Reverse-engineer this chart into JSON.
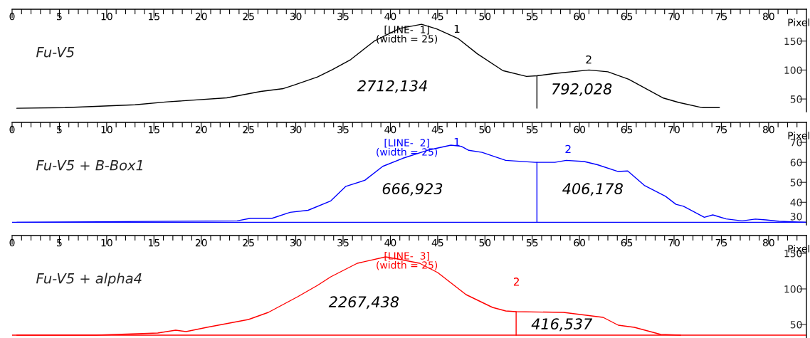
{
  "chart_data": [
    {
      "type": "line",
      "title": "Fu-V5",
      "xlabel": "Pixel",
      "xlim": [
        0,
        84
      ],
      "ylim": [
        28,
        205
      ],
      "yticks": [
        50,
        100,
        150
      ],
      "xticks": [
        0,
        {
          "value": 1,
          "label": null
        },
        {
          "value": 2,
          "label": null
        },
        {
          "value": 3,
          "label": null
        },
        {
          "value": 4,
          "label": null
        },
        5,
        {
          "value": 6,
          "label": null
        },
        {
          "value": 7,
          "label": null
        },
        {
          "value": 8,
          "label": null
        },
        {
          "value": 9,
          "label": null
        },
        10,
        {
          "value": 11,
          "label": null
        },
        {
          "value": 12,
          "label": null
        },
        {
          "value": 13,
          "label": null
        },
        {
          "value": 14,
          "label": null
        },
        15,
        {
          "value": 16,
          "label": null
        },
        {
          "value": 17,
          "label": null
        },
        {
          "value": 18,
          "label": null
        },
        {
          "value": 19,
          "label": null
        },
        20,
        {
          "value": 21,
          "label": null
        },
        {
          "value": 22,
          "label": null
        },
        {
          "value": 23,
          "label": null
        },
        {
          "value": 24,
          "label": null
        },
        25,
        {
          "value": 26,
          "label": null
        },
        {
          "value": 27,
          "label": null
        },
        {
          "value": 28,
          "label": null
        },
        {
          "value": 29,
          "label": null
        },
        30,
        {
          "value": 31,
          "label": null
        },
        {
          "value": 32,
          "label": null
        },
        {
          "value": 33,
          "label": null
        },
        {
          "value": 34,
          "label": null
        },
        35,
        {
          "value": 36,
          "label": null
        },
        {
          "value": 37,
          "label": null
        },
        {
          "value": 38,
          "label": null
        },
        {
          "value": 39,
          "label": null
        },
        40,
        {
          "value": 41,
          "label": null
        },
        {
          "value": 42,
          "label": null
        },
        {
          "value": 43,
          "label": null
        },
        {
          "value": 44,
          "label": null
        },
        45,
        {
          "value": 46,
          "label": null
        },
        {
          "value": 47,
          "label": null
        },
        {
          "value": 48,
          "label": null
        },
        {
          "value": 49,
          "label": null
        },
        50,
        {
          "value": 51,
          "label": null
        },
        {
          "value": 52,
          "label": null
        },
        {
          "value": 53,
          "label": null
        },
        {
          "value": 54,
          "label": null
        },
        55,
        {
          "value": 56,
          "label": null
        },
        {
          "value": 57,
          "label": null
        },
        {
          "value": 58,
          "label": null
        },
        {
          "value": 59,
          "label": null
        },
        60,
        {
          "value": 61,
          "label": null
        },
        {
          "value": 62,
          "label": null
        },
        {
          "value": 63,
          "label": null
        },
        {
          "value": 64,
          "label": null
        },
        65,
        {
          "value": 66,
          "label": null
        },
        {
          "value": 67,
          "label": null
        },
        {
          "value": 68,
          "label": null
        },
        {
          "value": 69,
          "label": null
        },
        70,
        {
          "value": 71,
          "label": null
        },
        {
          "value": 72,
          "label": null
        },
        {
          "value": 73,
          "label": null
        },
        {
          "value": 74,
          "label": null
        },
        75,
        {
          "value": 76,
          "label": null
        },
        {
          "value": 77,
          "label": null
        },
        {
          "value": 78,
          "label": null
        },
        {
          "value": 79,
          "label": null
        },
        80,
        {
          "value": 81,
          "label": null
        },
        {
          "value": 82,
          "label": null
        },
        {
          "value": 83,
          "label": null
        }
      ],
      "series": [
        {
          "color": "#000000",
          "x": [
            0.5,
            5.6,
            13,
            16.4,
            22.7,
            26.3,
            28.7,
            29.8,
            32.3,
            33.9,
            35.8,
            38.3,
            41,
            43.3,
            44.9,
            47.2,
            49.2,
            51.9,
            54.4,
            55.5,
            57.4,
            61,
            63,
            65.2,
            68.8,
            70.5,
            73,
            74.8
          ],
          "values": [
            34,
            35,
            40,
            45,
            52,
            63,
            68,
            74,
            88,
            101,
            118,
            150,
            172,
            179,
            171,
            154,
            128,
            99,
            89,
            90,
            94,
            100,
            97,
            84,
            52,
            44,
            35,
            35
          ]
        },
        {
          "type": "line",
          "color": "#000000",
          "x": [
            55.5,
            55.5
          ],
          "values": [
            34,
            90
          ]
        }
      ],
      "annotations": [
        "[LINE-  1]",
        "(width = 25)",
        "1",
        "2",
        "2712,134",
        "792,028"
      ],
      "grid": false,
      "legend": false
    },
    {
      "type": "line",
      "title": "Fu-V5 + B-Box1",
      "xlabel": "Pixel",
      "xlim": [
        0,
        84
      ],
      "ylim": [
        28.7,
        80
      ],
      "yticks": [
        30,
        40,
        50,
        60,
        70
      ],
      "xticks": [
        0,
        {
          "value": 1,
          "label": null
        },
        {
          "value": 2,
          "label": null
        },
        {
          "value": 3,
          "label": null
        },
        {
          "value": 4,
          "label": null
        },
        5,
        {
          "value": 6,
          "label": null
        },
        {
          "value": 7,
          "label": null
        },
        {
          "value": 8,
          "label": null
        },
        {
          "value": 9,
          "label": null
        },
        10,
        {
          "value": 11,
          "label": null
        },
        {
          "value": 12,
          "label": null
        },
        {
          "value": 13,
          "label": null
        },
        {
          "value": 14,
          "label": null
        },
        15,
        {
          "value": 16,
          "label": null
        },
        {
          "value": 17,
          "label": null
        },
        {
          "value": 18,
          "label": null
        },
        {
          "value": 19,
          "label": null
        },
        20,
        {
          "value": 21,
          "label": null
        },
        {
          "value": 22,
          "label": null
        },
        {
          "value": 23,
          "label": null
        },
        {
          "value": 24,
          "label": null
        },
        25,
        {
          "value": 26,
          "label": null
        },
        {
          "value": 27,
          "label": null
        },
        {
          "value": 28,
          "label": null
        },
        {
          "value": 29,
          "label": null
        },
        30,
        {
          "value": 31,
          "label": null
        },
        {
          "value": 32,
          "label": null
        },
        {
          "value": 33,
          "label": null
        },
        {
          "value": 34,
          "label": null
        },
        35,
        {
          "value": 36,
          "label": null
        },
        {
          "value": 37,
          "label": null
        },
        {
          "value": 38,
          "label": null
        },
        {
          "value": 39,
          "label": null
        },
        40,
        {
          "value": 41,
          "label": null
        },
        {
          "value": 42,
          "label": null
        },
        {
          "value": 43,
          "label": null
        },
        {
          "value": 44,
          "label": null
        },
        45,
        {
          "value": 46,
          "label": null
        },
        {
          "value": 47,
          "label": null
        },
        {
          "value": 48,
          "label": null
        },
        {
          "value": 49,
          "label": null
        },
        50,
        {
          "value": 51,
          "label": null
        },
        {
          "value": 52,
          "label": null
        },
        {
          "value": 53,
          "label": null
        },
        {
          "value": 54,
          "label": null
        },
        55,
        {
          "value": 56,
          "label": null
        },
        {
          "value": 57,
          "label": null
        },
        {
          "value": 58,
          "label": null
        },
        {
          "value": 59,
          "label": null
        },
        60,
        {
          "value": 61,
          "label": null
        },
        {
          "value": 62,
          "label": null
        },
        {
          "value": 63,
          "label": null
        },
        {
          "value": 64,
          "label": null
        },
        65,
        {
          "value": 66,
          "label": null
        },
        {
          "value": 67,
          "label": null
        },
        {
          "value": 68,
          "label": null
        },
        {
          "value": 69,
          "label": null
        },
        70,
        {
          "value": 71,
          "label": null
        },
        {
          "value": 72,
          "label": null
        },
        {
          "value": 73,
          "label": null
        },
        {
          "value": 74,
          "label": null
        },
        75,
        {
          "value": 76,
          "label": null
        },
        {
          "value": 77,
          "label": null
        },
        {
          "value": 78,
          "label": null
        },
        {
          "value": 79,
          "label": null
        },
        80,
        {
          "value": 81,
          "label": null
        },
        {
          "value": 82,
          "label": null
        },
        {
          "value": 83,
          "label": null
        }
      ],
      "series": [
        {
          "color": "#0000ff",
          "x": [
            0.5,
            23.8,
            25.2,
            27.5,
            29.4,
            31.3,
            33.7,
            35.3,
            37.3,
            39.2,
            41.3,
            43.9,
            46.4,
            47.5,
            48.3,
            49.7,
            52.2,
            55.3,
            57.4,
            58.6,
            60.5,
            61.9,
            64.1,
            65.1,
            66.9,
            69.1,
            70.2,
            71,
            73.2,
            74.1,
            75.5,
            77.2,
            78.6,
            79.7,
            81.1,
            83.9
          ],
          "values": [
            30,
            30.7,
            32,
            32,
            35,
            36,
            40.7,
            48,
            51,
            58,
            62,
            66,
            68.6,
            68,
            66,
            65,
            61,
            60,
            60,
            61,
            60.4,
            58.8,
            55.4,
            55.7,
            48.3,
            43,
            39,
            38,
            32.5,
            33.7,
            31.7,
            30.7,
            31.6,
            31.2,
            30.5,
            30
          ]
        },
        {
          "type": "line",
          "color": "#0000ff",
          "x": [
            55.5,
            55.5
          ],
          "values": [
            30,
            60
          ]
        }
      ],
      "ref_lines": [
        {
          "axis": "y",
          "value": 30,
          "color": "#0000ff"
        }
      ],
      "annotations": [
        "[LINE-  2]",
        "(width = 25)",
        "1",
        "2",
        "666,923",
        "406,178"
      ],
      "grid": false,
      "legend": false
    },
    {
      "type": "line",
      "title": "Fu-V5 + alpha4",
      "xlabel": "Pixel",
      "xlim": [
        0,
        84
      ],
      "ylim": [
        31,
        175
      ],
      "yticks": [
        50,
        100,
        150
      ],
      "xticks": [
        0,
        {
          "value": 1,
          "label": null
        },
        {
          "value": 2,
          "label": null
        },
        {
          "value": 3,
          "label": null
        },
        {
          "value": 4,
          "label": null
        },
        5,
        {
          "value": 6,
          "label": null
        },
        {
          "value": 7,
          "label": null
        },
        {
          "value": 8,
          "label": null
        },
        {
          "value": 9,
          "label": null
        },
        10,
        {
          "value": 11,
          "label": null
        },
        {
          "value": 12,
          "label": null
        },
        {
          "value": 13,
          "label": null
        },
        {
          "value": 14,
          "label": null
        },
        15,
        {
          "value": 16,
          "label": null
        },
        {
          "value": 17,
          "label": null
        },
        {
          "value": 18,
          "label": null
        },
        {
          "value": 19,
          "label": null
        },
        20,
        {
          "value": 21,
          "label": null
        },
        {
          "value": 22,
          "label": null
        },
        {
          "value": 23,
          "label": null
        },
        {
          "value": 24,
          "label": null
        },
        25,
        {
          "value": 26,
          "label": null
        },
        {
          "value": 27,
          "label": null
        },
        {
          "value": 28,
          "label": null
        },
        {
          "value": 29,
          "label": null
        },
        30,
        {
          "value": 31,
          "label": null
        },
        {
          "value": 32,
          "label": null
        },
        {
          "value": 33,
          "label": null
        },
        {
          "value": 34,
          "label": null
        },
        35,
        {
          "value": 36,
          "label": null
        },
        {
          "value": 37,
          "label": null
        },
        {
          "value": 38,
          "label": null
        },
        {
          "value": 39,
          "label": null
        },
        40,
        {
          "value": 41,
          "label": null
        },
        {
          "value": 42,
          "label": null
        },
        {
          "value": 43,
          "label": null
        },
        {
          "value": 44,
          "label": null
        },
        45,
        {
          "value": 46,
          "label": null
        },
        {
          "value": 47,
          "label": null
        },
        {
          "value": 48,
          "label": null
        },
        {
          "value": 49,
          "label": null
        },
        50,
        {
          "value": 51,
          "label": null
        },
        {
          "value": 52,
          "label": null
        },
        {
          "value": 53,
          "label": null
        },
        {
          "value": 54,
          "label": null
        },
        55,
        {
          "value": 56,
          "label": null
        },
        {
          "value": 57,
          "label": null
        },
        {
          "value": 58,
          "label": null
        },
        {
          "value": 59,
          "label": null
        },
        60,
        {
          "value": 61,
          "label": null
        },
        {
          "value": 62,
          "label": null
        },
        {
          "value": 63,
          "label": null
        },
        {
          "value": 64,
          "label": null
        },
        65,
        {
          "value": 66,
          "label": null
        },
        {
          "value": 67,
          "label": null
        },
        {
          "value": 68,
          "label": null
        },
        {
          "value": 69,
          "label": null
        },
        70,
        {
          "value": 71,
          "label": null
        },
        {
          "value": 72,
          "label": null
        },
        {
          "value": 73,
          "label": null
        },
        {
          "value": 74,
          "label": null
        },
        75,
        {
          "value": 76,
          "label": null
        },
        {
          "value": 77,
          "label": null
        },
        {
          "value": 78,
          "label": null
        },
        {
          "value": 79,
          "label": null
        },
        80,
        {
          "value": 81,
          "label": null
        },
        {
          "value": 82,
          "label": null
        },
        {
          "value": 83,
          "label": null
        }
      ],
      "series": [
        {
          "color": "#ff0000",
          "x": [
            0.5,
            8.9,
            15.4,
            17.3,
            18.4,
            20.6,
            25,
            27.1,
            30.2,
            32.3,
            33.7,
            36.5,
            39.5,
            40.8,
            43.1,
            45,
            48,
            50.8,
            52.2,
            53.3,
            58.3,
            62.5,
            64.1,
            65.8,
            68.6,
            70.7
          ],
          "values": [
            35,
            35,
            38,
            42,
            40,
            46,
            57,
            67,
            89,
            105,
            117,
            136,
            145,
            142,
            136,
            123,
            92,
            74,
            69,
            68,
            67,
            60,
            49,
            46,
            36,
            35
          ]
        },
        {
          "type": "line",
          "color": "#ff0000",
          "x": [
            53.3,
            53.3
          ],
          "values": [
            35,
            68
          ]
        }
      ],
      "ref_lines": [
        {
          "axis": "y",
          "value": 35,
          "color": "#ff0000"
        }
      ],
      "annotations": [
        "[LINE-  3]",
        "(width = 25)",
        "2",
        "2267,438",
        "416,537"
      ],
      "grid": false,
      "legend": false
    }
  ]
}
